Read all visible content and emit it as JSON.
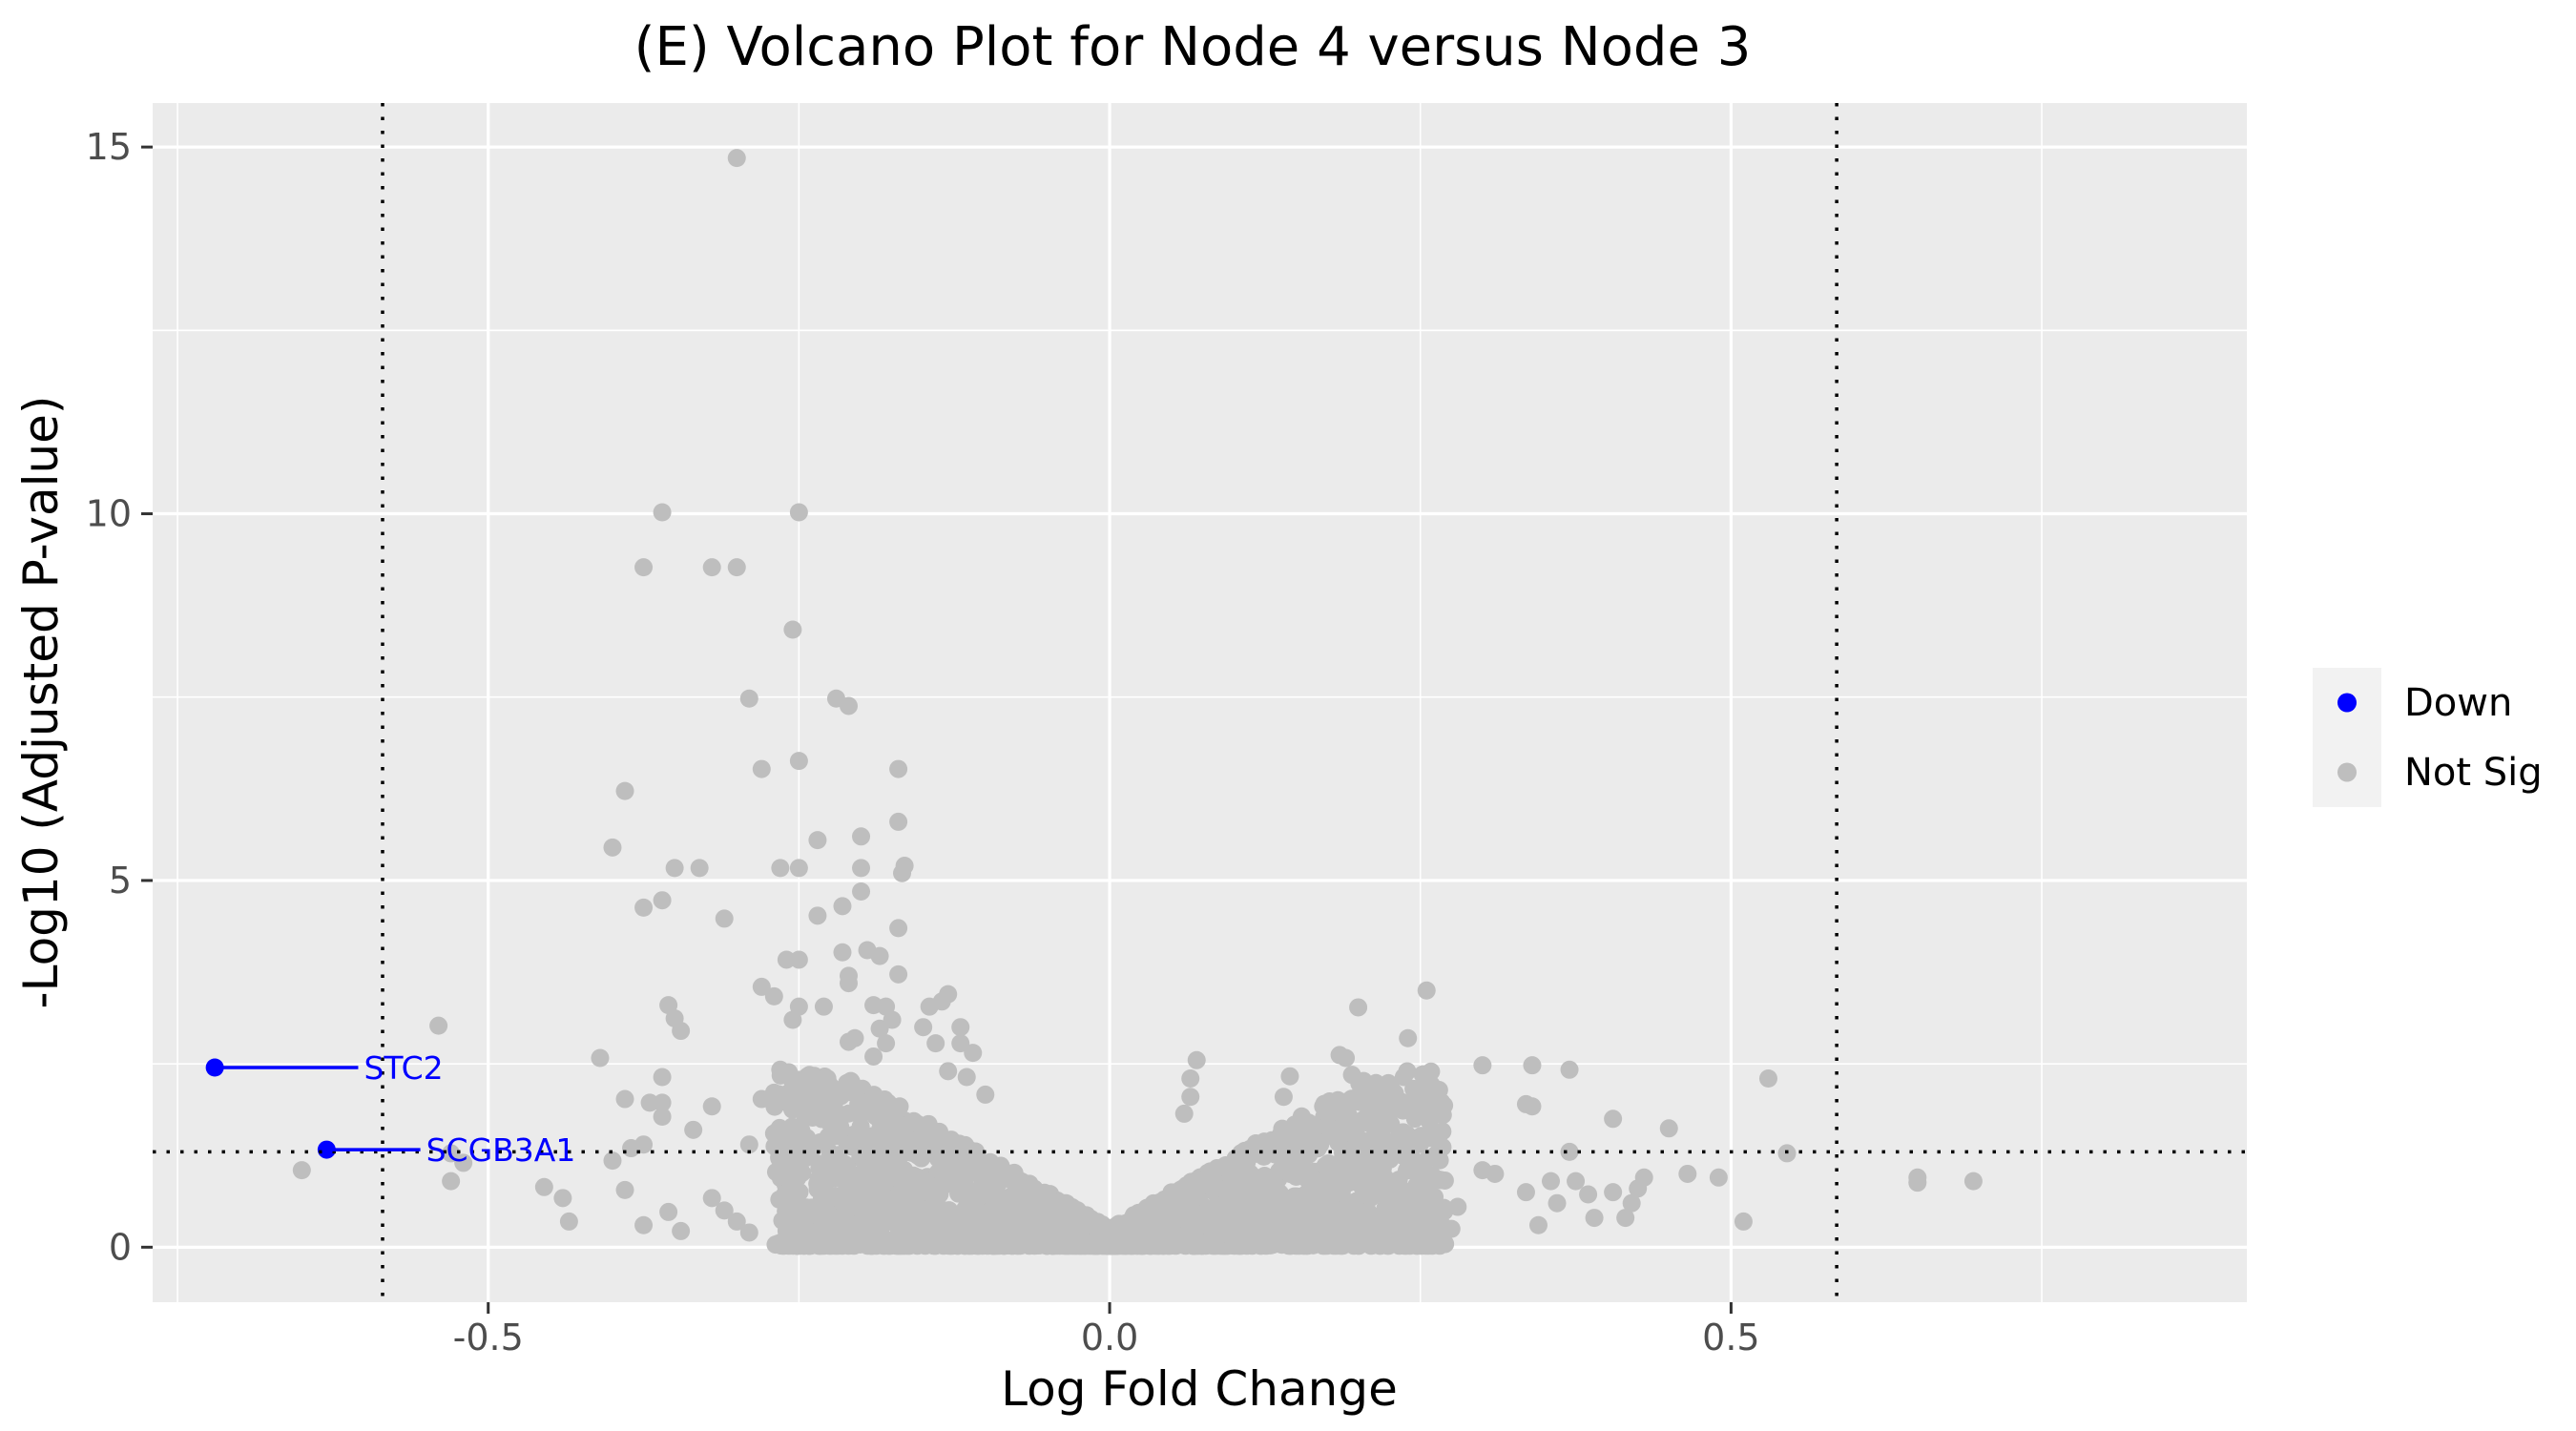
{
  "chart_data": {
    "type": "scatter",
    "title": "(E) Volcano Plot for Node 4 versus Node 3",
    "xlabel": "Log Fold Change",
    "ylabel": "-Log10 (Adjusted P-value)",
    "xlim": [
      -0.77,
      0.915
    ],
    "ylim": [
      -0.75,
      15.6
    ],
    "x_ticks": [
      -0.5,
      0.0,
      0.5
    ],
    "x_tick_labels": [
      "-0.5",
      "0.0",
      "0.5"
    ],
    "y_ticks": [
      0,
      5,
      10,
      15
    ],
    "y_tick_labels": [
      "0",
      "5",
      "10",
      "15"
    ],
    "grid": true,
    "legend_position": "right",
    "thresholds": {
      "vlines": [
        -0.585,
        0.585
      ],
      "hline": 1.3,
      "style": "dotted"
    },
    "colors": {
      "Down": "#0000ff",
      "Not Sig": "#bebebe",
      "panel": "#ebebeb",
      "grid": "#ffffff"
    },
    "legend": [
      {
        "label": "Down",
        "color": "#0000ff"
      },
      {
        "label": "Not Sig",
        "color": "#bebebe"
      }
    ],
    "labels": [
      {
        "gene": "STC2",
        "x": -0.72,
        "y": 2.45,
        "label_x": -0.6,
        "label_y": 2.45
      },
      {
        "gene": "SCGB3A1",
        "x": -0.63,
        "y": 1.33,
        "label_x": -0.55,
        "label_y": 1.33
      }
    ],
    "series": [
      {
        "name": "Down",
        "color": "#0000ff",
        "points": [
          [
            -0.72,
            2.45
          ],
          [
            -0.63,
            1.33
          ]
        ]
      },
      {
        "name": "Not Sig",
        "color": "#bebebe",
        "points": [
          [
            -0.3,
            14.85
          ],
          [
            -0.36,
            10.02
          ],
          [
            -0.25,
            10.02
          ],
          [
            -0.375,
            9.27
          ],
          [
            -0.32,
            9.27
          ],
          [
            -0.3,
            9.27
          ],
          [
            -0.255,
            8.42
          ],
          [
            -0.29,
            7.48
          ],
          [
            -0.22,
            7.48
          ],
          [
            -0.21,
            7.38
          ],
          [
            -0.25,
            6.63
          ],
          [
            -0.28,
            6.52
          ],
          [
            -0.17,
            6.52
          ],
          [
            -0.39,
            6.22
          ],
          [
            -0.17,
            5.8
          ],
          [
            -0.4,
            5.45
          ],
          [
            -0.2,
            5.6
          ],
          [
            -0.235,
            5.55
          ],
          [
            -0.35,
            5.17
          ],
          [
            -0.33,
            5.17
          ],
          [
            -0.265,
            5.17
          ],
          [
            -0.25,
            5.17
          ],
          [
            -0.2,
            5.17
          ],
          [
            -0.165,
            5.2
          ],
          [
            -0.167,
            5.1
          ],
          [
            -0.36,
            4.73
          ],
          [
            -0.375,
            4.63
          ],
          [
            -0.31,
            4.48
          ],
          [
            -0.215,
            4.65
          ],
          [
            -0.2,
            4.85
          ],
          [
            -0.235,
            4.52
          ],
          [
            -0.17,
            4.35
          ],
          [
            -0.195,
            4.05
          ],
          [
            -0.215,
            4.02
          ],
          [
            -0.185,
            3.97
          ],
          [
            -0.26,
            3.92
          ],
          [
            -0.25,
            3.92
          ],
          [
            -0.21,
            3.7
          ],
          [
            -0.17,
            3.72
          ],
          [
            -0.28,
            3.55
          ],
          [
            -0.21,
            3.6
          ],
          [
            -0.13,
            3.45
          ],
          [
            -0.27,
            3.42
          ],
          [
            -0.135,
            3.35
          ],
          [
            -0.355,
            3.3
          ],
          [
            -0.25,
            3.28
          ],
          [
            -0.23,
            3.28
          ],
          [
            -0.19,
            3.3
          ],
          [
            -0.18,
            3.28
          ],
          [
            -0.145,
            3.28
          ],
          [
            -0.35,
            3.12
          ],
          [
            -0.255,
            3.1
          ],
          [
            -0.175,
            3.1
          ],
          [
            -0.345,
            2.95
          ],
          [
            -0.185,
            2.98
          ],
          [
            -0.15,
            3.0
          ],
          [
            -0.12,
            3.0
          ],
          [
            -0.205,
            2.85
          ],
          [
            -0.21,
            2.8
          ],
          [
            -0.18,
            2.78
          ],
          [
            -0.14,
            2.78
          ],
          [
            -0.12,
            2.78
          ],
          [
            -0.41,
            2.58
          ],
          [
            -0.19,
            2.6
          ],
          [
            -0.11,
            2.65
          ],
          [
            -0.36,
            2.32
          ],
          [
            -0.265,
            2.42
          ],
          [
            -0.245,
            2.22
          ],
          [
            -0.13,
            2.4
          ],
          [
            -0.115,
            2.32
          ],
          [
            -0.39,
            2.02
          ],
          [
            -0.37,
            1.97
          ],
          [
            -0.36,
            1.97
          ],
          [
            -0.32,
            1.92
          ],
          [
            -0.28,
            2.02
          ],
          [
            -0.26,
            1.98
          ],
          [
            -0.245,
            1.98
          ],
          [
            -0.1,
            2.08
          ],
          [
            -0.36,
            1.78
          ],
          [
            -0.375,
            1.4
          ],
          [
            -0.385,
            1.35
          ],
          [
            -0.335,
            1.6
          ],
          [
            -0.29,
            1.4
          ],
          [
            -0.27,
            1.55
          ],
          [
            -0.26,
            1.5
          ],
          [
            -0.54,
            3.02
          ],
          [
            -0.53,
            1.28
          ],
          [
            -0.52,
            1.15
          ],
          [
            -0.53,
            0.9
          ],
          [
            -0.65,
            1.05
          ],
          [
            -0.455,
            0.82
          ],
          [
            -0.44,
            0.67
          ],
          [
            -0.435,
            0.35
          ],
          [
            -0.4,
            1.18
          ],
          [
            -0.39,
            0.78
          ],
          [
            -0.375,
            0.3
          ],
          [
            -0.355,
            0.48
          ],
          [
            -0.345,
            0.22
          ],
          [
            -0.32,
            0.67
          ],
          [
            -0.31,
            0.5
          ],
          [
            -0.3,
            0.35
          ],
          [
            -0.29,
            0.2
          ],
          [
            -0.26,
            0.22
          ],
          [
            -0.25,
            0.5
          ],
          [
            0.07,
            2.55
          ],
          [
            0.065,
            2.3
          ],
          [
            0.065,
            2.05
          ],
          [
            0.06,
            1.82
          ],
          [
            0.145,
            2.33
          ],
          [
            0.14,
            2.05
          ],
          [
            0.19,
            2.58
          ],
          [
            0.185,
            2.62
          ],
          [
            0.195,
            2.35
          ],
          [
            0.205,
            2.25
          ],
          [
            0.19,
            1.98
          ],
          [
            0.2,
            3.27
          ],
          [
            0.255,
            3.5
          ],
          [
            0.24,
            2.85
          ],
          [
            0.3,
            2.48
          ],
          [
            0.34,
            2.48
          ],
          [
            0.37,
            2.42
          ],
          [
            0.335,
            1.95
          ],
          [
            0.34,
            1.92
          ],
          [
            0.405,
            1.75
          ],
          [
            0.45,
            1.62
          ],
          [
            0.53,
            2.3
          ],
          [
            0.545,
            1.28
          ],
          [
            0.37,
            1.3
          ],
          [
            0.3,
            1.05
          ],
          [
            0.31,
            1.0
          ],
          [
            0.335,
            0.75
          ],
          [
            0.345,
            0.3
          ],
          [
            0.355,
            0.9
          ],
          [
            0.36,
            0.6
          ],
          [
            0.375,
            0.9
          ],
          [
            0.385,
            0.72
          ],
          [
            0.39,
            0.4
          ],
          [
            0.405,
            0.75
          ],
          [
            0.415,
            0.4
          ],
          [
            0.42,
            0.6
          ],
          [
            0.425,
            0.8
          ],
          [
            0.43,
            0.95
          ],
          [
            0.465,
            1.0
          ],
          [
            0.49,
            0.95
          ],
          [
            0.51,
            0.35
          ],
          [
            0.65,
            0.95
          ],
          [
            0.65,
            0.88
          ],
          [
            0.695,
            0.9
          ],
          [
            0.28,
            0.55
          ],
          [
            0.275,
            0.25
          ],
          [
            0.25,
            0.45
          ],
          [
            0.22,
            0.9
          ],
          [
            0.18,
            0.3
          ]
        ]
      }
    ],
    "cloud": {
      "series": "Not Sig",
      "description_points": 2600,
      "x_range": [
        -0.27,
        0.27
      ],
      "v_shape": true
    }
  }
}
